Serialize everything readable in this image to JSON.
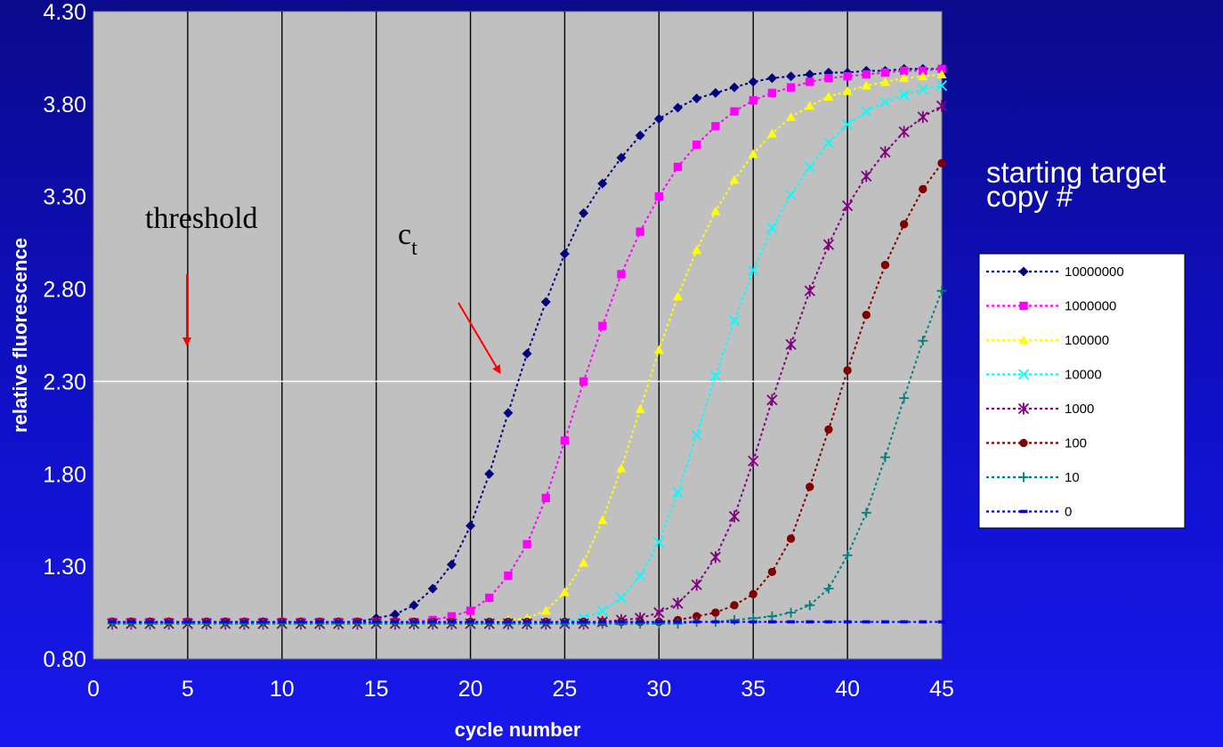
{
  "colors": {
    "background": "#1010c8",
    "plot_area": "#c0c0c0",
    "gridlines": "#000000",
    "threshold_line": "#ffffff",
    "arrows": "#ff0000"
  },
  "side_title": {
    "line1": "starting target",
    "line2": "copy #"
  },
  "annotations": {
    "threshold_label": "threshold",
    "ct_base": "c",
    "ct_sub": "t"
  },
  "chart_data": {
    "type": "line",
    "title": "",
    "xlabel": "cycle number",
    "ylabel": "relative fluorescence",
    "xlim": [
      0,
      45
    ],
    "ylim": [
      0.8,
      4.3
    ],
    "x_ticks": [
      "0",
      "5",
      "10",
      "15",
      "20",
      "25",
      "30",
      "35",
      "40",
      "45"
    ],
    "y_ticks": [
      "0.80",
      "1.30",
      "1.80",
      "2.30",
      "2.80",
      "3.30",
      "3.80",
      "4.30"
    ],
    "vertical_gridlines_at": [
      5,
      10,
      15,
      20,
      25,
      30,
      35,
      40
    ],
    "threshold": 2.3,
    "legend_position": "right",
    "x": [
      1,
      2,
      3,
      4,
      5,
      6,
      7,
      8,
      9,
      10,
      11,
      12,
      13,
      14,
      15,
      16,
      17,
      18,
      19,
      20,
      21,
      22,
      23,
      24,
      25,
      26,
      27,
      28,
      29,
      30,
      31,
      32,
      33,
      34,
      35,
      36,
      37,
      38,
      39,
      40,
      41,
      42,
      43,
      44,
      45
    ],
    "series": [
      {
        "name": "10000000",
        "color": "#000080",
        "marker": "diamond",
        "values": [
          1.0,
          1.0,
          1.0,
          1.0,
          1.0,
          1.0,
          1.0,
          1.0,
          1.0,
          1.0,
          1.0,
          1.0,
          1.0,
          1.0,
          1.02,
          1.04,
          1.09,
          1.18,
          1.31,
          1.52,
          1.8,
          2.13,
          2.45,
          2.73,
          2.99,
          3.21,
          3.37,
          3.51,
          3.63,
          3.72,
          3.78,
          3.83,
          3.86,
          3.89,
          3.92,
          3.94,
          3.95,
          3.96,
          3.97,
          3.97,
          3.98,
          3.98,
          3.99,
          3.99,
          3.99
        ]
      },
      {
        "name": "1000000",
        "color": "#ff00ff",
        "marker": "square",
        "values": [
          1.0,
          1.0,
          1.0,
          1.0,
          1.0,
          1.0,
          1.0,
          1.0,
          1.0,
          1.0,
          1.0,
          1.0,
          1.0,
          1.0,
          1.0,
          1.0,
          1.0,
          1.01,
          1.03,
          1.06,
          1.13,
          1.25,
          1.42,
          1.67,
          1.98,
          2.3,
          2.6,
          2.88,
          3.11,
          3.3,
          3.46,
          3.58,
          3.68,
          3.76,
          3.82,
          3.86,
          3.89,
          3.92,
          3.94,
          3.95,
          3.96,
          3.97,
          3.98,
          3.98,
          3.99
        ]
      },
      {
        "name": "100000",
        "color": "#ffff00",
        "marker": "triangle",
        "values": [
          1.0,
          1.0,
          1.0,
          1.0,
          1.0,
          1.0,
          1.0,
          1.0,
          1.0,
          1.0,
          1.0,
          1.0,
          1.0,
          1.0,
          1.0,
          1.0,
          1.0,
          1.0,
          1.0,
          1.0,
          1.0,
          1.01,
          1.02,
          1.06,
          1.16,
          1.32,
          1.55,
          1.83,
          2.15,
          2.47,
          2.76,
          3.01,
          3.22,
          3.39,
          3.53,
          3.64,
          3.73,
          3.79,
          3.84,
          3.87,
          3.9,
          3.92,
          3.94,
          3.95,
          3.96
        ]
      },
      {
        "name": "10000",
        "color": "#00ffff",
        "marker": "x",
        "values": [
          0.99,
          0.99,
          0.99,
          0.99,
          0.99,
          0.99,
          0.99,
          0.99,
          0.99,
          0.99,
          0.99,
          0.99,
          0.99,
          0.99,
          0.99,
          0.99,
          0.99,
          0.99,
          0.99,
          0.99,
          0.99,
          0.99,
          0.99,
          0.99,
          1.0,
          1.02,
          1.06,
          1.13,
          1.25,
          1.43,
          1.7,
          2.01,
          2.33,
          2.63,
          2.9,
          3.13,
          3.31,
          3.46,
          3.59,
          3.69,
          3.76,
          3.81,
          3.85,
          3.88,
          3.9
        ]
      },
      {
        "name": "1000",
        "color": "#800080",
        "marker": "asterisk",
        "values": [
          0.99,
          0.99,
          0.99,
          0.99,
          0.99,
          0.99,
          0.99,
          0.99,
          0.99,
          0.99,
          0.99,
          0.99,
          0.99,
          0.99,
          0.99,
          0.99,
          0.99,
          0.99,
          0.99,
          0.99,
          0.99,
          0.99,
          0.99,
          0.99,
          0.99,
          0.99,
          1.0,
          1.01,
          1.02,
          1.05,
          1.1,
          1.2,
          1.35,
          1.57,
          1.87,
          2.2,
          2.5,
          2.79,
          3.04,
          3.25,
          3.41,
          3.54,
          3.65,
          3.73,
          3.79
        ]
      },
      {
        "name": "100",
        "color": "#800000",
        "marker": "circle",
        "values": [
          1.0,
          1.0,
          1.0,
          1.0,
          1.0,
          1.0,
          1.0,
          1.0,
          1.0,
          1.0,
          1.0,
          1.0,
          1.0,
          1.0,
          1.0,
          1.0,
          1.0,
          1.0,
          1.0,
          1.0,
          1.0,
          1.0,
          1.0,
          1.0,
          1.0,
          1.0,
          1.0,
          1.0,
          1.0,
          1.0,
          1.01,
          1.03,
          1.05,
          1.09,
          1.15,
          1.27,
          1.45,
          1.73,
          2.04,
          2.36,
          2.66,
          2.93,
          3.15,
          3.34,
          3.48
        ]
      },
      {
        "name": "10",
        "color": "#008080",
        "marker": "plus",
        "values": [
          0.99,
          0.99,
          0.99,
          0.99,
          0.99,
          0.99,
          0.99,
          0.99,
          0.99,
          0.99,
          0.99,
          0.99,
          0.99,
          0.99,
          0.99,
          0.99,
          0.99,
          0.99,
          0.99,
          0.99,
          0.99,
          0.99,
          0.99,
          0.99,
          0.99,
          0.99,
          0.99,
          0.99,
          0.99,
          0.99,
          0.99,
          1.0,
          1.0,
          1.01,
          1.02,
          1.03,
          1.05,
          1.09,
          1.18,
          1.36,
          1.59,
          1.89,
          2.21,
          2.52,
          2.79
        ]
      },
      {
        "name": "0",
        "color": "#0000ff",
        "marker": "dash",
        "values": [
          1.0,
          1.0,
          1.0,
          1.0,
          1.0,
          1.0,
          1.0,
          1.0,
          1.0,
          1.0,
          1.0,
          1.0,
          1.0,
          1.0,
          1.0,
          1.0,
          1.0,
          1.0,
          1.0,
          1.0,
          1.0,
          1.0,
          1.0,
          1.0,
          1.0,
          1.0,
          1.0,
          1.0,
          1.0,
          1.0,
          1.0,
          1.0,
          1.0,
          1.0,
          1.0,
          1.0,
          1.0,
          1.0,
          1.0,
          1.0,
          1.0,
          1.0,
          1.0,
          1.0,
          1.0
        ]
      }
    ]
  }
}
